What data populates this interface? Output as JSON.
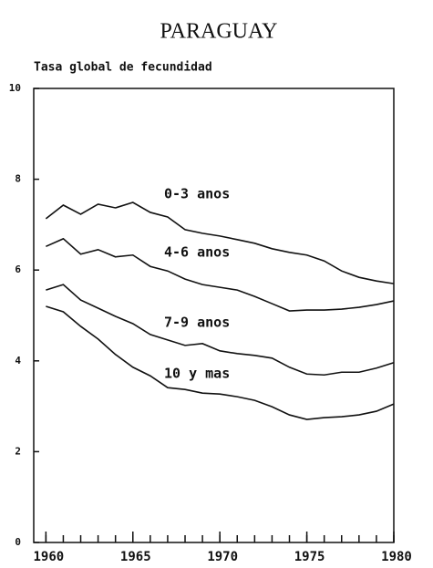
{
  "chart_data": {
    "type": "line",
    "title": "PARAGUAY",
    "ylabel": "Tasa global de fecundidad",
    "x": [
      1960,
      1961,
      1962,
      1963,
      1964,
      1965,
      1966,
      1967,
      1968,
      1969,
      1970,
      1971,
      1972,
      1973,
      1974,
      1975,
      1976,
      1977,
      1978,
      1979,
      1980
    ],
    "series": [
      {
        "name": "0-3 anos",
        "color": "#111111",
        "values": [
          7.13,
          7.43,
          7.23,
          7.45,
          7.37,
          7.49,
          7.27,
          7.17,
          6.89,
          6.81,
          6.75,
          6.67,
          6.59,
          6.47,
          6.39,
          6.33,
          6.2,
          5.98,
          5.84,
          5.76,
          5.7
        ]
      },
      {
        "name": "4-6 anos",
        "color": "#111111",
        "values": [
          6.52,
          6.69,
          6.35,
          6.45,
          6.29,
          6.33,
          6.08,
          5.98,
          5.8,
          5.68,
          5.62,
          5.56,
          5.42,
          5.26,
          5.1,
          5.12,
          5.12,
          5.14,
          5.18,
          5.24,
          5.32
        ]
      },
      {
        "name": "7-9 anos",
        "color": "#111111",
        "values": [
          5.56,
          5.68,
          5.34,
          5.16,
          4.98,
          4.82,
          4.58,
          4.46,
          4.34,
          4.38,
          4.22,
          4.16,
          4.12,
          4.06,
          3.86,
          3.71,
          3.69,
          3.75,
          3.75,
          3.84,
          3.96
        ]
      },
      {
        "name": "10 y mas",
        "color": "#111111",
        "values": [
          5.2,
          5.08,
          4.76,
          4.48,
          4.14,
          3.86,
          3.67,
          3.41,
          3.37,
          3.29,
          3.27,
          3.21,
          3.13,
          2.99,
          2.81,
          2.71,
          2.75,
          2.77,
          2.81,
          2.89,
          3.05
        ]
      }
    ],
    "xlim": [
      1959.3,
      1980
    ],
    "xticks": [
      1960,
      1965,
      1970,
      1975,
      1980
    ],
    "ylim": [
      0,
      10
    ],
    "yticks": [
      0,
      2,
      4,
      6,
      8,
      10
    ],
    "grid": false
  }
}
